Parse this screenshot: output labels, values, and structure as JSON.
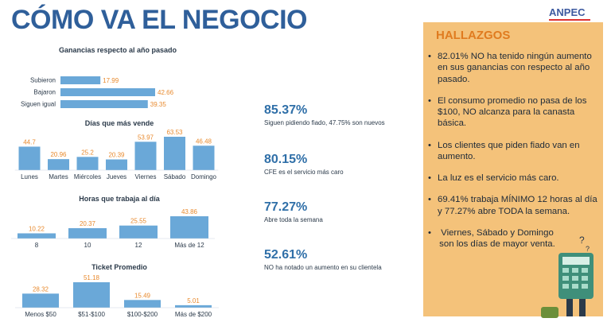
{
  "page": {
    "title": "CÓMO VA EL NEGOCIO",
    "logo": "ANPEC"
  },
  "stats": [
    {
      "pct": "85.37%",
      "desc": "Siguen pidiendo fiado, 47.75% son nuevos"
    },
    {
      "pct": "80.15%",
      "desc": "CFE es el servicio más caro"
    },
    {
      "pct": "77.27%",
      "desc": "Abre toda la semana"
    },
    {
      "pct": "52.61%",
      "desc": "NO ha notado un aumento en su clientela"
    }
  ],
  "findings": {
    "title": "HALLAZGOS",
    "items": [
      "82.01% NO ha tenido ningún aumento en sus ganancias con respecto al año pasado.",
      "El consumo promedio no pasa de los $100, NO alcanza para la canasta básica.",
      "Los clientes que piden fiado van en aumento.",
      "La luz es el servicio más caro.",
      "69.41% trabaja MÍNIMO 12 horas al día y 77.27% abre TODA la semana.",
      "Viernes, Sábado y Domingo son los días de mayor venta."
    ]
  },
  "colors": {
    "bar": "#6aa8d8",
    "value_label": "#e88a2e",
    "title": "#2f5f9a",
    "panel": "#f4c27a",
    "panel_title": "#e07b1f"
  },
  "chart_data": [
    {
      "type": "bar",
      "orientation": "horizontal",
      "title": "Ganancias respecto al año pasado",
      "categories": [
        "Subieron",
        "Bajaron",
        "Siguen igual"
      ],
      "values": [
        17.99,
        42.66,
        39.35
      ],
      "value_labels": [
        "17.99",
        "42.66",
        "39.35"
      ]
    },
    {
      "type": "bar",
      "title": "Días que más vende",
      "categories": [
        "Lunes",
        "Martes",
        "Miércoles",
        "Jueves",
        "Viernes",
        "Sábado",
        "Domingo"
      ],
      "values": [
        44.7,
        20.96,
        25.2,
        20.39,
        53.97,
        63.53,
        46.48
      ],
      "value_labels": [
        "44.7",
        "20.96",
        "25.2",
        "20.39",
        "53.97",
        "63.53",
        "46.48"
      ]
    },
    {
      "type": "bar",
      "title": "Horas que trabaja al día",
      "categories": [
        "8",
        "10",
        "12",
        "Más de 12"
      ],
      "values": [
        10.22,
        20.37,
        25.55,
        43.86
      ],
      "value_labels": [
        "10.22",
        "20.37",
        "25.55",
        "43.86"
      ]
    },
    {
      "type": "bar",
      "title": "Ticket Promedio",
      "categories": [
        "Menos $50",
        "$51-$100",
        "$100-$200",
        "Más de $200"
      ],
      "values": [
        28.32,
        51.18,
        15.49,
        5.01
      ],
      "value_labels": [
        "28.32",
        "51.18",
        "15.49",
        "5.01"
      ]
    }
  ]
}
